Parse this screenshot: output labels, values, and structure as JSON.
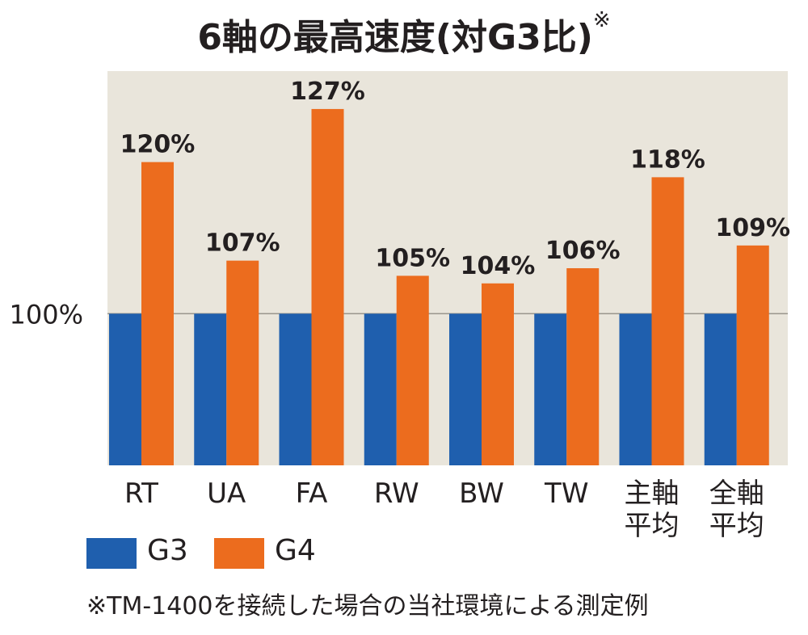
{
  "title": "6軸の最高速度(対G3比)",
  "title_mark": "※",
  "footnote": "※TM-1400を接続した場合の当社環境による測定例",
  "colors": {
    "g3": "#1f5fae",
    "g4": "#ec6c1e",
    "plot_bg": "#e9e5db",
    "ref_line": "#9a968d"
  },
  "chart_data": {
    "type": "bar",
    "categories": [
      "RT",
      "UA",
      "FA",
      "RW",
      "BW",
      "TW",
      "主軸\n平均",
      "全軸\n平均"
    ],
    "series": [
      {
        "name": "G3",
        "values": [
          100,
          100,
          100,
          100,
          100,
          100,
          100,
          100
        ]
      },
      {
        "name": "G4",
        "values": [
          120,
          107,
          127,
          105,
          104,
          106,
          118,
          109
        ]
      }
    ],
    "data_labels": [
      "120%",
      "107%",
      "127%",
      "105%",
      "104%",
      "106%",
      "118%",
      "109%"
    ],
    "reference_tick": "100%",
    "ylim": [
      80,
      132
    ],
    "legend": "bottom-left"
  }
}
